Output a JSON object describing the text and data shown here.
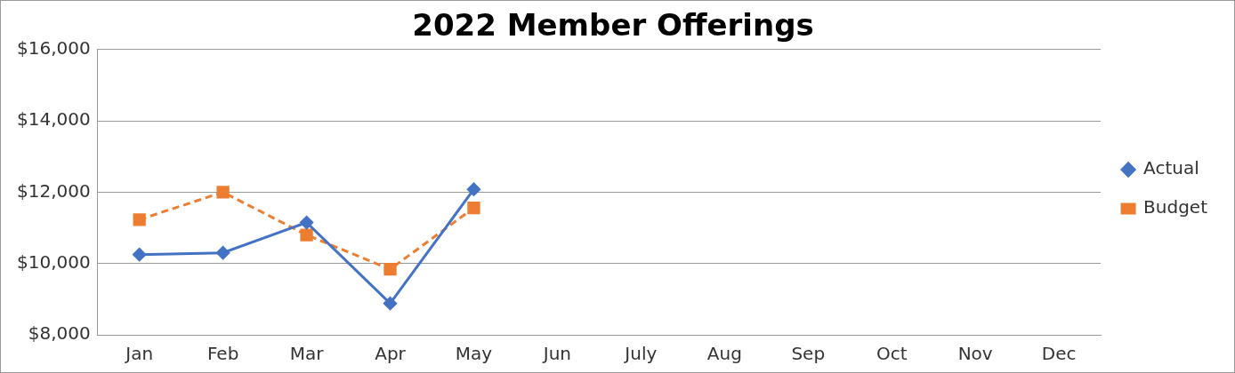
{
  "chart_data": {
    "type": "line",
    "title": "2022 Member Offerings",
    "categories": [
      "Jan",
      "Feb",
      "Mar",
      "Apr",
      "May",
      "Jun",
      "July",
      "Aug",
      "Sep",
      "Oct",
      "Nov",
      "Dec"
    ],
    "series": [
      {
        "name": "Actual",
        "color": "#4472c4",
        "marker": "diamond",
        "line_style": "solid",
        "values": [
          10250,
          10300,
          11150,
          8880,
          12080,
          null,
          null,
          null,
          null,
          null,
          null,
          null
        ]
      },
      {
        "name": "Budget",
        "color": "#ed7d31",
        "marker": "square",
        "line_style": "dashed",
        "values": [
          11230,
          12000,
          10800,
          9840,
          11560,
          null,
          null,
          null,
          null,
          null,
          null,
          null
        ]
      }
    ],
    "ylim": [
      8000,
      16000
    ],
    "yticks": [
      {
        "value": 8000,
        "label": "$8,000"
      },
      {
        "value": 10000,
        "label": "$10,000"
      },
      {
        "value": 12000,
        "label": "$12,000"
      },
      {
        "value": 14000,
        "label": "$14,000"
      },
      {
        "value": 16000,
        "label": "$16,000"
      }
    ],
    "grid": "y",
    "legend": "right"
  }
}
